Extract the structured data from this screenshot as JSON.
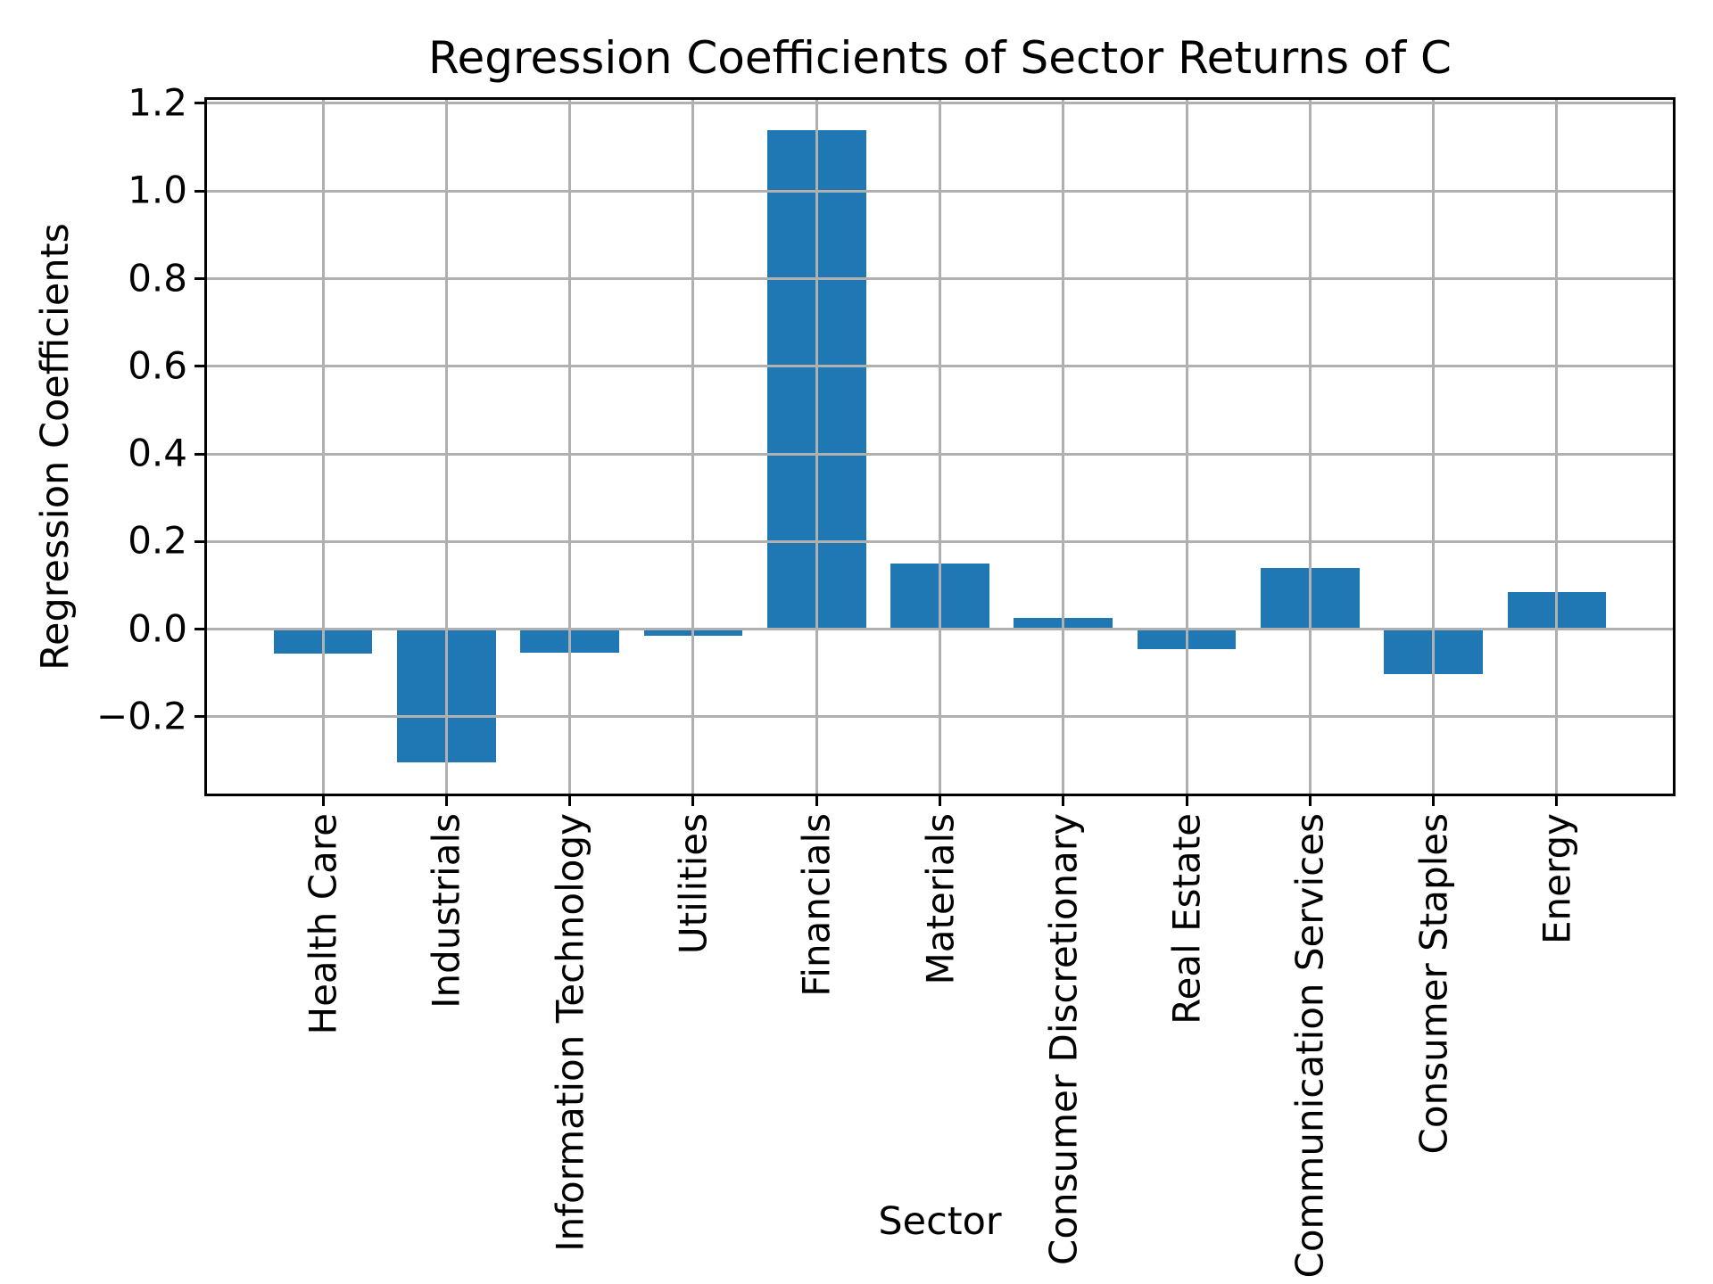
{
  "figure": {
    "background": "#ffffff",
    "text_color": "#000000"
  },
  "chart_data": {
    "type": "bar",
    "title": "Regression Coefficients of Sector Returns of C",
    "xlabel": "Sector",
    "ylabel": "Regression Coefficients",
    "categories": [
      "Health Care",
      "Industrials",
      "Information Technology",
      "Utilities",
      "Financials",
      "Materials",
      "Consumer Discretionary",
      "Real Estate",
      "Communication Services",
      "Consumer Staples",
      "Energy"
    ],
    "values": [
      -0.055,
      -0.303,
      -0.053,
      -0.014,
      1.138,
      0.149,
      0.025,
      -0.045,
      0.139,
      -0.103,
      0.084
    ],
    "ylim": [
      -0.375,
      1.208
    ],
    "yticks": [
      -0.2,
      0.0,
      0.2,
      0.4,
      0.6,
      0.8,
      1.0,
      1.2
    ],
    "ytick_labels": [
      "−0.2",
      "0.0",
      "0.2",
      "0.4",
      "0.6",
      "0.8",
      "1.0",
      "1.2"
    ],
    "bar_color": "#1f77b4",
    "bar_width_fraction": 0.8,
    "grid": true,
    "grid_on_top_of_bars": true,
    "grid_color": "#b0b0b0",
    "axis_color": "#000000",
    "legend": "none"
  }
}
